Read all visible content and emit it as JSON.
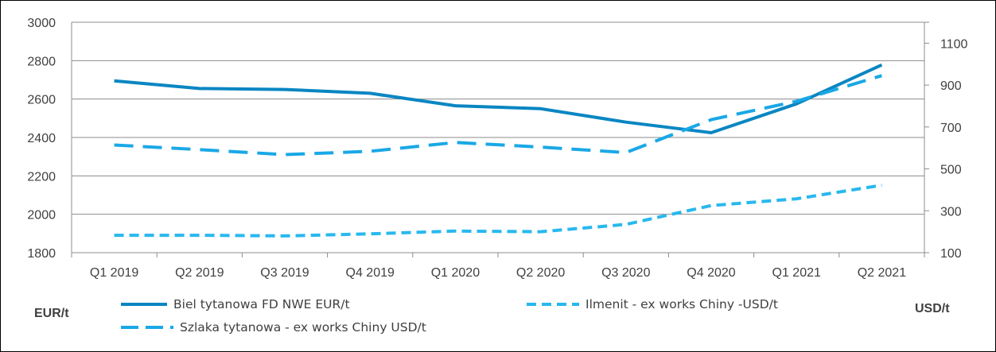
{
  "chart_data": {
    "type": "line",
    "categories": [
      "Q1 2019",
      "Q2 2019",
      "Q3 2019",
      "Q4 2019",
      "Q1 2020",
      "Q2 2020",
      "Q3 2020",
      "Q4 2020",
      "Q1 2021",
      "Q2 2021"
    ],
    "ylabel": "EUR/t",
    "y2label": "USD/t",
    "ylim": [
      1800,
      3000
    ],
    "y2lim": [
      100,
      1200
    ],
    "yticks": [
      1800,
      2000,
      2200,
      2400,
      2600,
      2800,
      3000
    ],
    "y2ticks": [
      100,
      300,
      500,
      700,
      900,
      1100
    ],
    "grid": true,
    "legend_position": "bottom",
    "series": [
      {
        "name": "Biel tytanowa FD NWE EUR/t",
        "axis": "left",
        "style": "solid",
        "color": "#0a86c2",
        "values": [
          2695,
          2655,
          2650,
          2630,
          2565,
          2550,
          2480,
          2425,
          2575,
          2778
        ]
      },
      {
        "name": "Ilmenit - ex works Chiny -USD/t",
        "axis": "right",
        "style": "dashed",
        "color": "#28b8ee",
        "values": [
          183,
          183,
          180,
          190,
          203,
          200,
          235,
          325,
          357,
          422
        ]
      },
      {
        "name": "Szlaka tytanowa - ex works Chiny USD/t",
        "axis": "right",
        "style": "longdash",
        "color": "#1aa8e6",
        "values": [
          614,
          592,
          568,
          584,
          626,
          604,
          578,
          735,
          823,
          945
        ]
      }
    ]
  }
}
